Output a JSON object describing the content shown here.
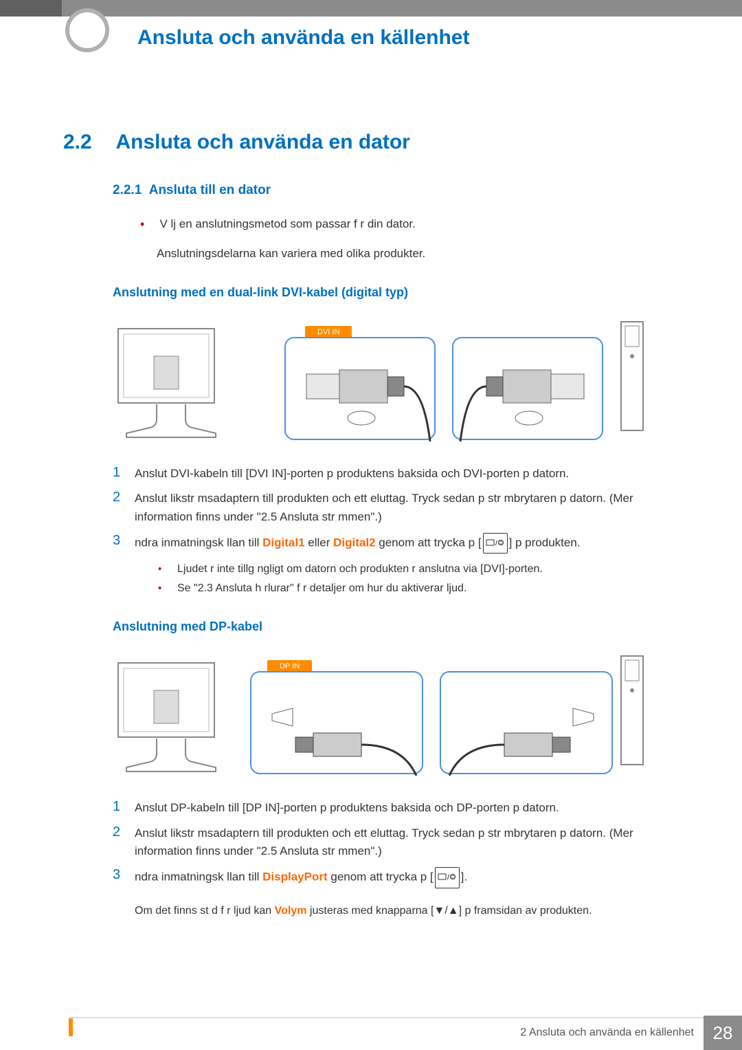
{
  "header": {
    "title": "Ansluta och använda en källenhet"
  },
  "section": {
    "num": "2.2",
    "title": "Ansluta och använda en dator"
  },
  "subsection": {
    "num": "2.2.1",
    "title": "Ansluta till en dator"
  },
  "intro_bullet": "V  lj en anslutningsmetod som passar f  r din dator.",
  "intro_note": "Anslutningsdelarna kan variera med olika produkter.",
  "dvi": {
    "heading": "Anslutning med en dual-link DVI-kabel (digital typ)",
    "port_label": "DVI IN",
    "steps": [
      "Anslut DVI-kabeln till [DVI IN]-porten p   produktens baksida och DVI-porten p   datorn.",
      "Anslut likstr  msadaptern till produkten och ett eluttag. Tryck sedan p   str  mbrytaren p   datorn. (Mer information finns under \"2.5 Ansluta str  mmen\".)",
      "   ndra inmatningsk  llan till |D1| eller |D2| genom att trycka p   [ICON] p   produkten."
    ],
    "d1": "Digital1",
    "d2": "Digital2",
    "sub_bullets": [
      "Ljudet   r inte tillg  ngligt om datorn och produkten   r anslutna via [DVI]-porten.",
      "Se \"2.3 Ansluta h  rlurar\" f  r detaljer om hur du aktiverar ljud."
    ]
  },
  "dp": {
    "heading": "Anslutning med DP-kabel",
    "port_label": "DP IN",
    "steps": [
      "Anslut DP-kabeln till [DP IN]-porten p   produktens baksida och DP-porten p   datorn.",
      "Anslut likstr  msadaptern till produkten och ett eluttag. Tryck sedan p   str  mbrytaren p   datorn. (Mer information finns under \"2.5 Ansluta str  mmen\".)",
      "   ndra inmatningsk  llan till |DP| genom att trycka p   [ICON]."
    ],
    "dpname": "DisplayPort",
    "footnote_pre": "Om det finns st  d f  r ljud kan ",
    "footnote_vol": "Volym",
    "footnote_post": " justeras med knapparna [▼/▲] p   framsidan av produkten."
  },
  "footer": {
    "text": "2 Ansluta och använda en källenhet",
    "page": "28"
  },
  "colors": {
    "accent": "#0070c0",
    "orange": "#ff6600",
    "port_bg": "#ff8c00",
    "box_border": "#5090e0"
  }
}
